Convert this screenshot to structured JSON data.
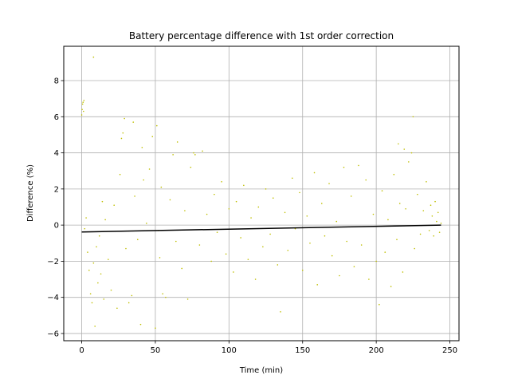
{
  "chart_data": {
    "type": "scatter",
    "title": "Battery percentage difference with 1st order correction",
    "xlabel": "Time (min)",
    "ylabel": "Difference (%)",
    "xlim": [
      -12.2,
      256.2
    ],
    "ylim": [
      -6.4,
      9.9
    ],
    "xticks": [
      0,
      50,
      100,
      150,
      200,
      250
    ],
    "yticks": [
      -6,
      -4,
      -2,
      0,
      2,
      4,
      6,
      8
    ],
    "grid": true,
    "scatter_color": "#bfbf00",
    "line_color": "#000000",
    "fit_line": {
      "x": [
        0,
        244
      ],
      "y": [
        -0.38,
        0.0
      ]
    },
    "scatter_points": [
      [
        0,
        6.1
      ],
      [
        0.3,
        6.4
      ],
      [
        0.6,
        6.7
      ],
      [
        0.9,
        6.8
      ],
      [
        1.2,
        6.3
      ],
      [
        1.5,
        6.9
      ],
      [
        8,
        9.3
      ],
      [
        2,
        -0.2
      ],
      [
        3,
        0.4
      ],
      [
        4,
        -1.5
      ],
      [
        5,
        -2.5
      ],
      [
        6,
        -3.8
      ],
      [
        7,
        -4.3
      ],
      [
        8,
        -2.1
      ],
      [
        9,
        -5.6
      ],
      [
        10,
        -1.2
      ],
      [
        11,
        -3.2
      ],
      [
        12,
        -0.6
      ],
      [
        13,
        -2.7
      ],
      [
        14,
        1.3
      ],
      [
        15,
        -4.1
      ],
      [
        16,
        0.3
      ],
      [
        18,
        -1.9
      ],
      [
        20,
        -3.6
      ],
      [
        22,
        1.1
      ],
      [
        24,
        -4.6
      ],
      [
        26,
        2.8
      ],
      [
        27,
        4.8
      ],
      [
        28,
        5.1
      ],
      [
        29,
        5.9
      ],
      [
        30,
        -1.3
      ],
      [
        32,
        -4.3
      ],
      [
        34,
        -3.9
      ],
      [
        35,
        5.7
      ],
      [
        36,
        1.6
      ],
      [
        38,
        -0.8
      ],
      [
        40,
        -5.5
      ],
      [
        41,
        4.3
      ],
      [
        42,
        2.5
      ],
      [
        44,
        0.1
      ],
      [
        46,
        3.1
      ],
      [
        48,
        4.9
      ],
      [
        50,
        -5.7
      ],
      [
        51,
        5.5
      ],
      [
        52,
        -0.3
      ],
      [
        53,
        -1.8
      ],
      [
        54,
        2.1
      ],
      [
        55,
        -3.8
      ],
      [
        57,
        -4.0
      ],
      [
        60,
        1.4
      ],
      [
        62,
        3.9
      ],
      [
        64,
        -0.9
      ],
      [
        65,
        4.6
      ],
      [
        68,
        -2.4
      ],
      [
        70,
        0.8
      ],
      [
        72,
        -4.1
      ],
      [
        74,
        3.2
      ],
      [
        76,
        4.0
      ],
      [
        77,
        3.9
      ],
      [
        80,
        -1.1
      ],
      [
        82,
        4.1
      ],
      [
        85,
        0.6
      ],
      [
        88,
        -2.0
      ],
      [
        90,
        1.7
      ],
      [
        92,
        -0.4
      ],
      [
        95,
        2.4
      ],
      [
        98,
        -1.6
      ],
      [
        100,
        0.9
      ],
      [
        103,
        -2.6
      ],
      [
        105,
        1.3
      ],
      [
        108,
        -0.7
      ],
      [
        110,
        2.2
      ],
      [
        113,
        -1.9
      ],
      [
        115,
        0.4
      ],
      [
        118,
        -3.0
      ],
      [
        120,
        1.0
      ],
      [
        123,
        -1.2
      ],
      [
        125,
        2.0
      ],
      [
        128,
        -0.5
      ],
      [
        130,
        1.5
      ],
      [
        133,
        -2.2
      ],
      [
        135,
        -4.8
      ],
      [
        138,
        0.7
      ],
      [
        140,
        -1.4
      ],
      [
        143,
        2.6
      ],
      [
        145,
        -0.2
      ],
      [
        148,
        1.8
      ],
      [
        150,
        -2.5
      ],
      [
        153,
        0.5
      ],
      [
        155,
        -1.0
      ],
      [
        158,
        2.9
      ],
      [
        160,
        -3.3
      ],
      [
        163,
        1.2
      ],
      [
        165,
        -0.6
      ],
      [
        168,
        2.3
      ],
      [
        170,
        -1.7
      ],
      [
        173,
        0.2
      ],
      [
        175,
        -2.8
      ],
      [
        178,
        3.2
      ],
      [
        180,
        -0.9
      ],
      [
        183,
        1.6
      ],
      [
        185,
        -2.3
      ],
      [
        188,
        3.3
      ],
      [
        190,
        -1.1
      ],
      [
        193,
        2.5
      ],
      [
        195,
        -3.0
      ],
      [
        198,
        0.6
      ],
      [
        200,
        -2.0
      ],
      [
        202,
        -4.4
      ],
      [
        204,
        1.9
      ],
      [
        206,
        -1.5
      ],
      [
        208,
        0.3
      ],
      [
        210,
        -3.4
      ],
      [
        212,
        2.8
      ],
      [
        214,
        -0.8
      ],
      [
        215,
        4.5
      ],
      [
        216,
        1.2
      ],
      [
        218,
        -2.6
      ],
      [
        219,
        4.2
      ],
      [
        220,
        0.9
      ],
      [
        222,
        3.5
      ],
      [
        224,
        4.0
      ],
      [
        225,
        6.0
      ],
      [
        226,
        -1.3
      ],
      [
        228,
        1.7
      ],
      [
        230,
        -0.5
      ],
      [
        232,
        0.8
      ],
      [
        234,
        2.4
      ],
      [
        236,
        -0.3
      ],
      [
        237,
        1.1
      ],
      [
        238,
        0.5
      ],
      [
        239,
        -0.6
      ],
      [
        240,
        1.3
      ],
      [
        241,
        0.2
      ],
      [
        242,
        0.7
      ],
      [
        243,
        -0.4
      ],
      [
        244,
        0.1
      ]
    ]
  }
}
